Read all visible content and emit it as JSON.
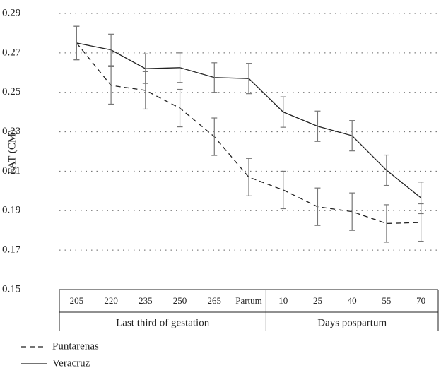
{
  "chart_data": {
    "type": "line",
    "y_label": "FAT (CM)",
    "categories": [
      "205",
      "220",
      "235",
      "250",
      "265",
      "Partum",
      "10",
      "25",
      "40",
      "55",
      "70"
    ],
    "groups": [
      {
        "label": "Last third of gestation",
        "span": [
          0,
          5
        ]
      },
      {
        "label": "Days pospartum",
        "span": [
          6,
          10
        ]
      }
    ],
    "series": [
      {
        "name": "Puntarenas",
        "color": "#222222",
        "dashed": true,
        "values": [
          0.275,
          0.2535,
          0.251,
          0.242,
          0.2275,
          0.207,
          0.2005,
          0.192,
          0.1895,
          0.1835,
          0.184
        ],
        "errors": [
          0.0085,
          0.0095,
          0.0095,
          0.0095,
          0.0095,
          0.0095,
          0.0095,
          0.0095,
          0.0095,
          0.0095,
          0.0095
        ]
      },
      {
        "name": "Veracruz",
        "color": "#222222",
        "dashed": false,
        "values": [
          0.275,
          0.2715,
          0.262,
          0.2625,
          0.2575,
          0.257,
          0.24,
          0.2328,
          0.228,
          0.2105,
          0.1965
        ],
        "errors": [
          0.0085,
          0.008,
          0.0075,
          0.0075,
          0.0075,
          0.0077,
          0.0077,
          0.0077,
          0.0077,
          0.0077,
          0.008
        ]
      }
    ],
    "ylim": [
      0.15,
      0.29
    ],
    "yticks": [
      0.15,
      0.17,
      0.19,
      0.21,
      0.23,
      0.25,
      0.27,
      0.29
    ],
    "grid": true
  }
}
